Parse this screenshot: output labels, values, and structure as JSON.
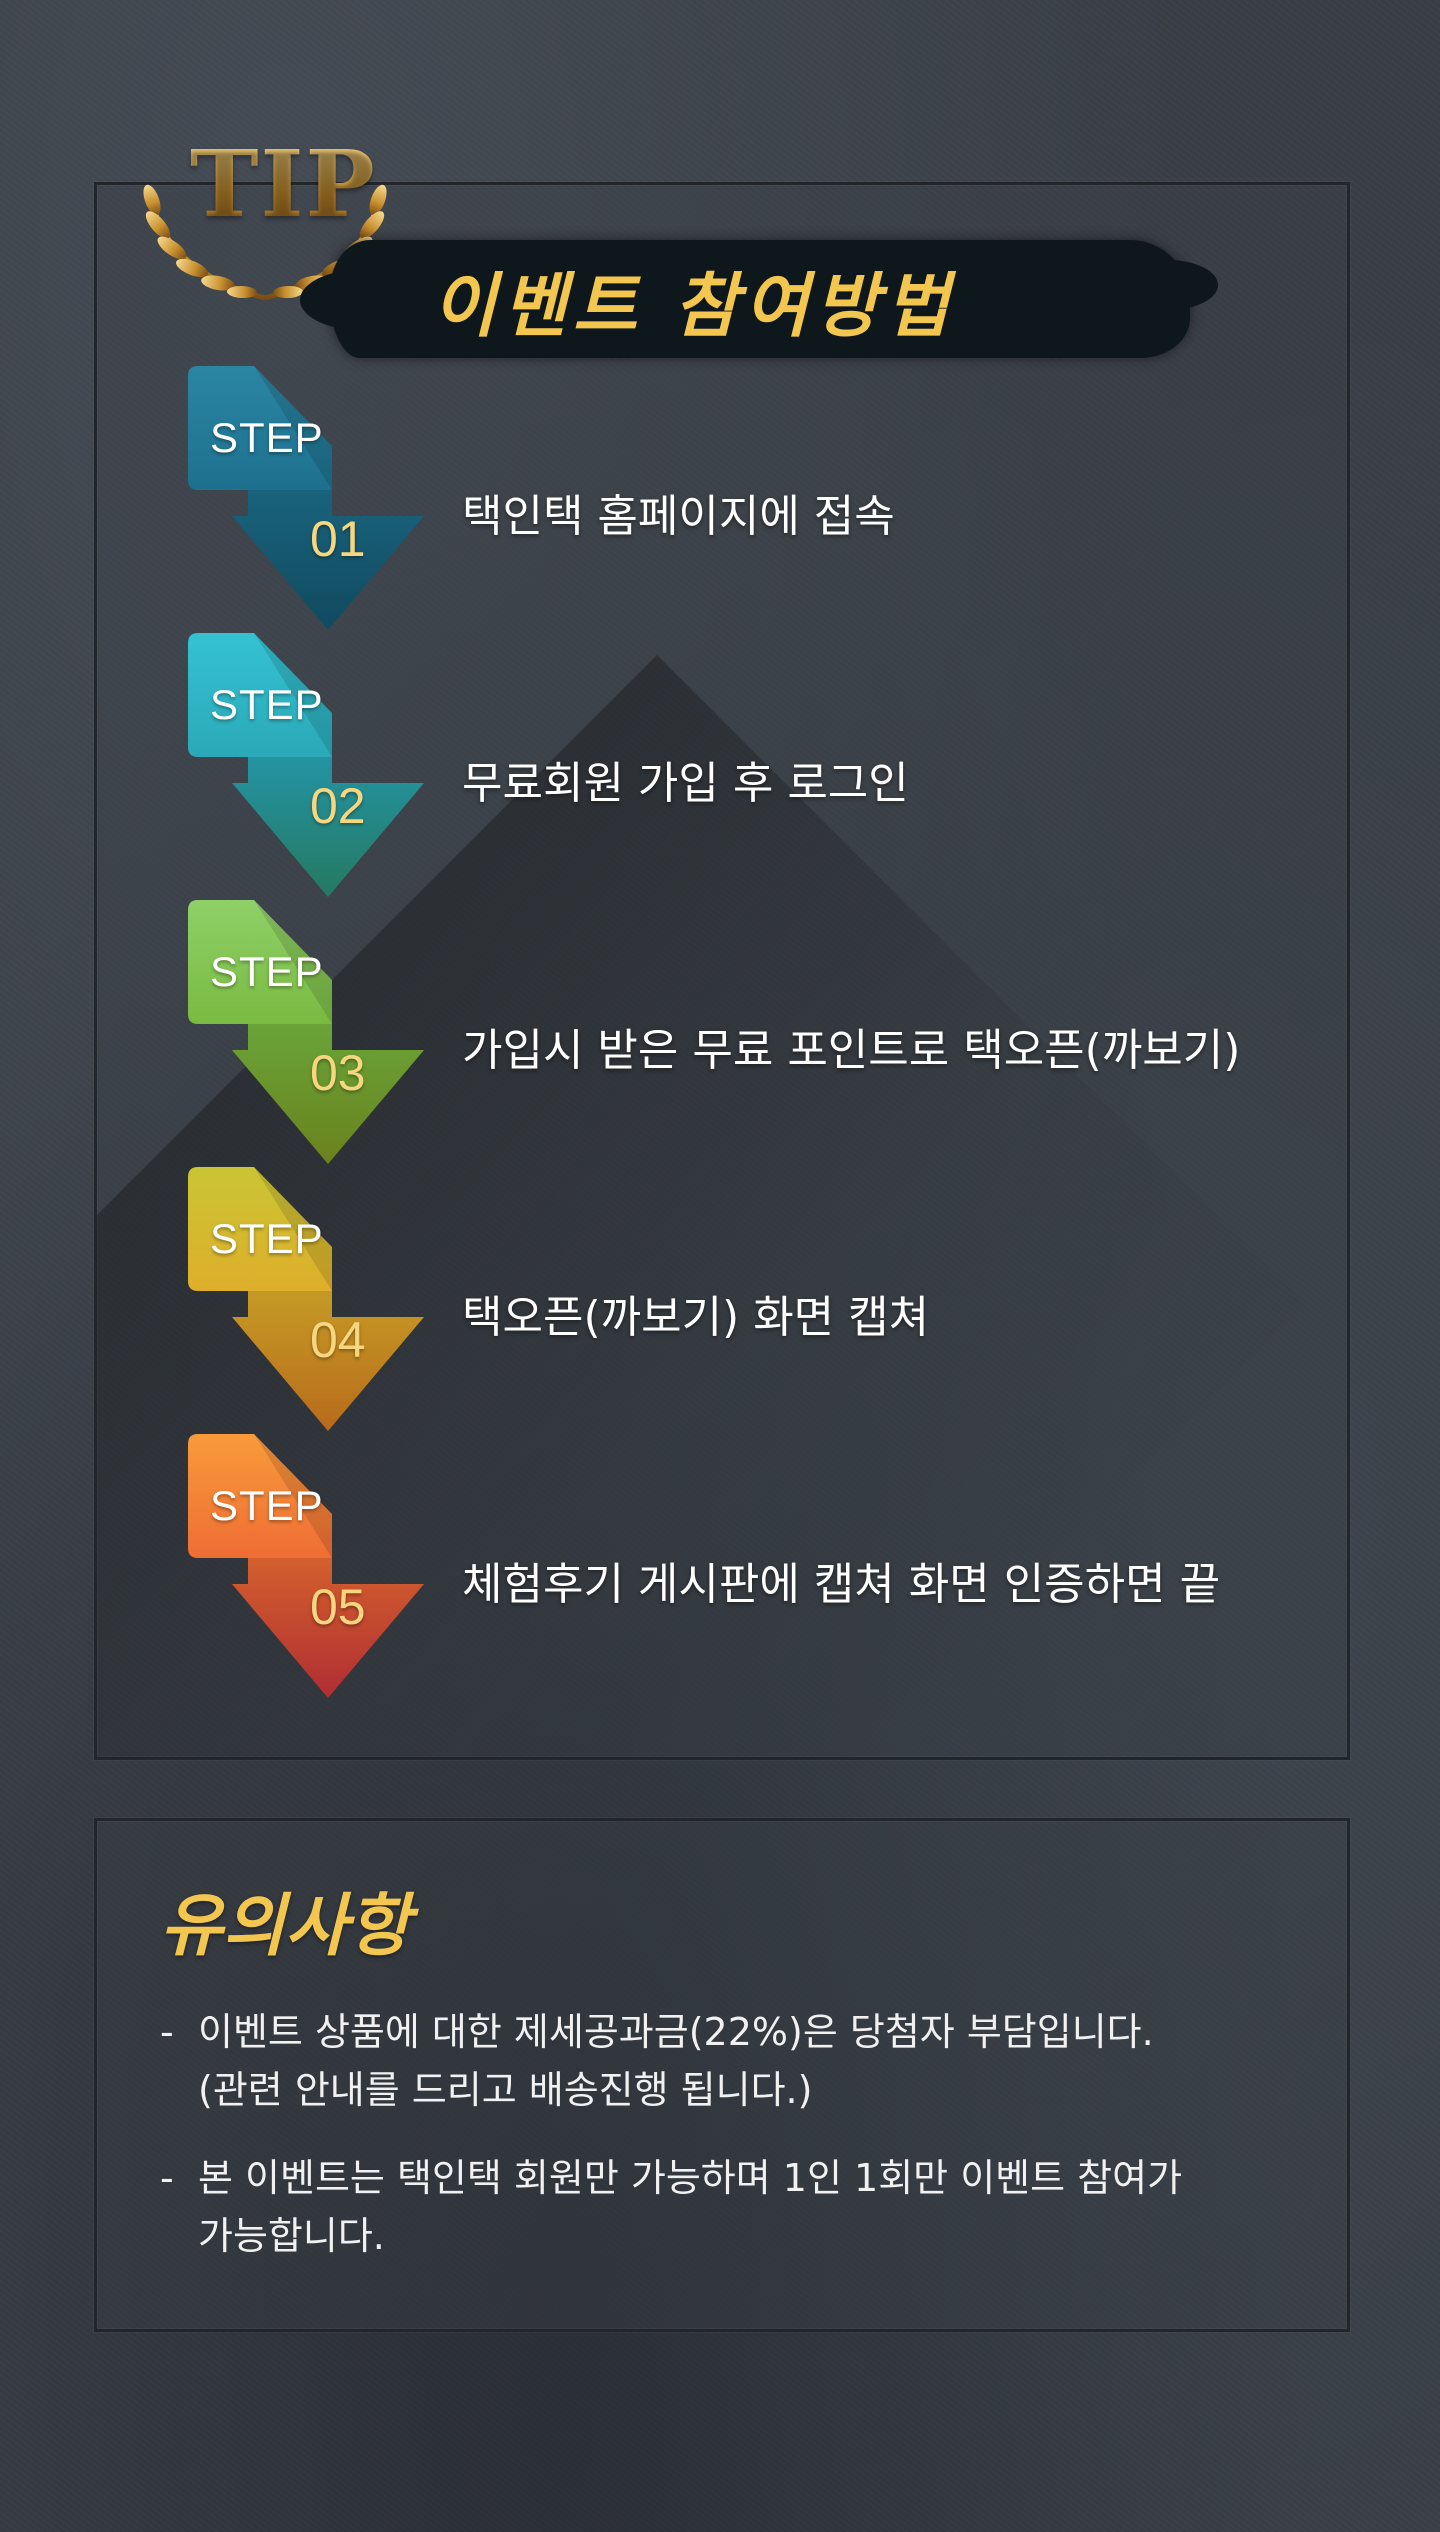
{
  "badge": {
    "text": "TIP"
  },
  "title": "이벤트 참여방법",
  "steps": [
    {
      "label": "STEP",
      "number": "01",
      "description": "택인택 홈페이지에 접속",
      "color_top": "#1d6f8c",
      "color_bottom": "#175f79"
    },
    {
      "label": "STEP",
      "number": "02",
      "description": "무료회원 가입 후 로그인",
      "color_top": "#2bb3c6",
      "color_bottom": "#2b8f86"
    },
    {
      "label": "STEP",
      "number": "03",
      "description": "가입시 받은 무료 포인트로 택오픈(까보기)",
      "color_top": "#7fc24e",
      "color_bottom": "#7a9b26"
    },
    {
      "label": "STEP",
      "number": "04",
      "description": "택오픈(까보기) 화면 캡쳐",
      "color_top": "#e3bb2e",
      "color_bottom": "#d98a1f"
    },
    {
      "label": "STEP",
      "number": "05",
      "description": "체험후기 게시판에 캡쳐 화면 인증하면 끝",
      "color_top": "#f47a36",
      "color_bottom": "#d2433a"
    }
  ],
  "notice": {
    "title": "유의사항",
    "dash": "-",
    "items": [
      {
        "line1": "이벤트 상품에 대한 제세공과금(22%)은 당첨자 부담입니다.",
        "line2": "(관련 안내를 드리고 배송진행 됩니다.)"
      },
      {
        "line1": "본 이벤트는 택인택 회원만 가능하며 1인 1회만 이벤트 참여가",
        "line2": "가능합니다."
      }
    ]
  },
  "colors": {
    "gold": "#f2c64f",
    "background": "#3a3f46",
    "step_number": "#f6d780"
  }
}
